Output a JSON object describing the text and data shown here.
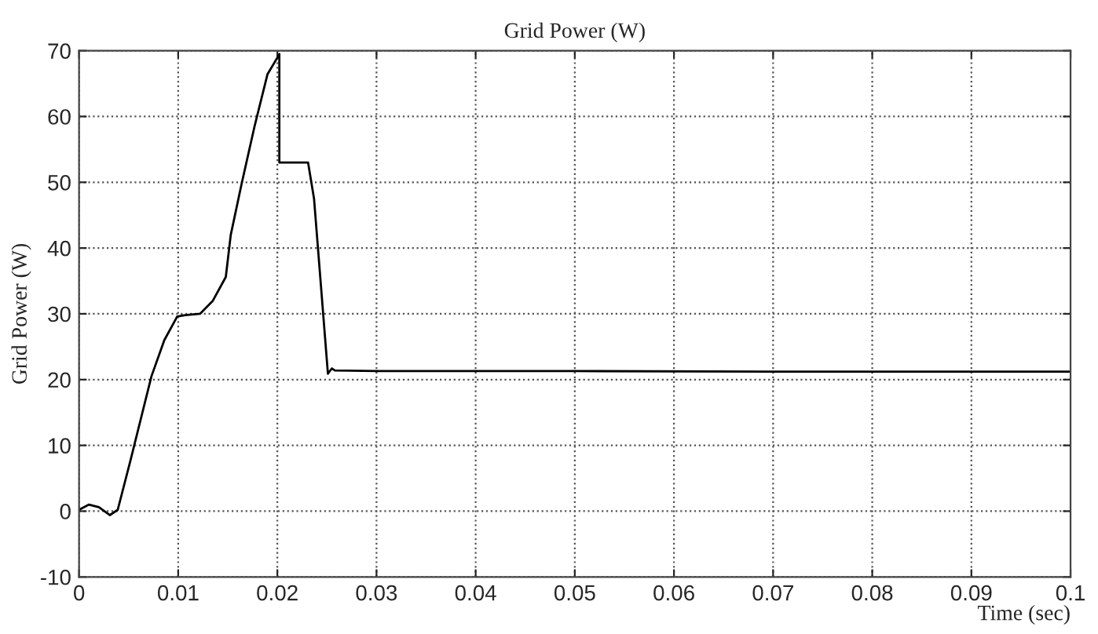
{
  "chart_data": {
    "type": "line",
    "title": "Grid Power (W)",
    "xlabel": "Time (sec)",
    "ylabel": "Grid Power (W)",
    "x": [
      0,
      0.001,
      0.002,
      0.0031,
      0.0039,
      0.0052,
      0.0073,
      0.0086,
      0.0099,
      0.0107,
      0.0122,
      0.0135,
      0.0148,
      0.0153,
      0.0164,
      0.0177,
      0.019,
      0.0201,
      0.0202,
      0.0202,
      0.0231,
      0.0237,
      0.0251,
      0.0255,
      0.0258,
      0.03,
      0.05,
      0.07,
      0.1
    ],
    "series": [
      {
        "color": "#000000",
        "values": [
          0.2,
          1.0,
          0.6,
          -0.6,
          0.2,
          7.8,
          20.5,
          26,
          29.6,
          29.8,
          30,
          32,
          35.6,
          42,
          49.8,
          58.5,
          66.4,
          69.2,
          69.5,
          53,
          53,
          47.5,
          20.9,
          21.7,
          21.4,
          21.3,
          21.3,
          21.2,
          21.2
        ]
      }
    ],
    "xlim": [
      0,
      0.1
    ],
    "ylim": [
      -10,
      70
    ],
    "xticks": [
      0,
      0.01,
      0.02,
      0.03,
      0.04,
      0.05,
      0.06,
      0.07,
      0.08,
      0.09,
      0.1
    ],
    "yticks": [
      -10,
      0,
      10,
      20,
      30,
      40,
      50,
      60,
      70
    ],
    "grid": true,
    "line_style": "solid",
    "marker": "none",
    "legend": false
  }
}
